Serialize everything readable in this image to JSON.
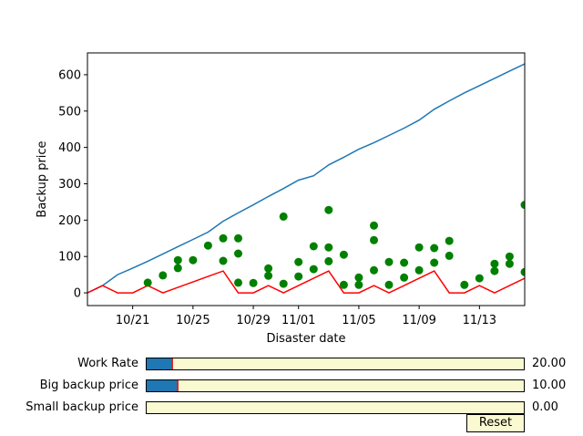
{
  "chart_data": {
    "type": "line",
    "xlabel": "Disaster date",
    "ylabel": "Backup price",
    "x_start": "2019-10-18",
    "x_end": "2019-11-16",
    "xticks": [
      {
        "date": "2019-10-21",
        "label": "10/21"
      },
      {
        "date": "2019-10-25",
        "label": "10/25"
      },
      {
        "date": "2019-10-29",
        "label": "10/29"
      },
      {
        "date": "2019-11-01",
        "label": "11/01"
      },
      {
        "date": "2019-11-05",
        "label": "11/05"
      },
      {
        "date": "2019-11-09",
        "label": "11/09"
      },
      {
        "date": "2019-11-13",
        "label": "11/13"
      }
    ],
    "ylim": [
      -35,
      660
    ],
    "yticks": [
      0,
      100,
      200,
      300,
      400,
      500,
      600
    ],
    "grid": false,
    "series": [
      {
        "color": "#1f77b4",
        "kind": "line",
        "points": [
          [
            "2019-10-18",
            0
          ],
          [
            "2019-10-19",
            20
          ],
          [
            "2019-10-20",
            50
          ],
          [
            "2019-10-21",
            68
          ],
          [
            "2019-10-22",
            87
          ],
          [
            "2019-10-23",
            107
          ],
          [
            "2019-10-24",
            127
          ],
          [
            "2019-10-25",
            147
          ],
          [
            "2019-10-26",
            167
          ],
          [
            "2019-10-27",
            197
          ],
          [
            "2019-10-28",
            220
          ],
          [
            "2019-10-29",
            242
          ],
          [
            "2019-10-30",
            265
          ],
          [
            "2019-10-31",
            287
          ],
          [
            "2019-11-01",
            310
          ],
          [
            "2019-11-02",
            322
          ],
          [
            "2019-11-03",
            352
          ],
          [
            "2019-11-04",
            373
          ],
          [
            "2019-11-05",
            395
          ],
          [
            "2019-11-06",
            413
          ],
          [
            "2019-11-07",
            433
          ],
          [
            "2019-11-08",
            453
          ],
          [
            "2019-11-09",
            475
          ],
          [
            "2019-11-10",
            505
          ],
          [
            "2019-11-11",
            528
          ],
          [
            "2019-11-12",
            550
          ],
          [
            "2019-11-13",
            570
          ],
          [
            "2019-11-14",
            590
          ],
          [
            "2019-11-15",
            610
          ],
          [
            "2019-11-16",
            630
          ]
        ]
      },
      {
        "color": "#ff0000",
        "kind": "line",
        "points": [
          [
            "2019-10-18",
            0
          ],
          [
            "2019-10-19",
            20
          ],
          [
            "2019-10-20",
            0
          ],
          [
            "2019-10-21",
            0
          ],
          [
            "2019-10-22",
            20
          ],
          [
            "2019-10-23",
            0
          ],
          [
            "2019-10-24",
            15
          ],
          [
            "2019-10-25",
            30
          ],
          [
            "2019-10-26",
            45
          ],
          [
            "2019-10-27",
            60
          ],
          [
            "2019-10-28",
            0
          ],
          [
            "2019-10-29",
            0
          ],
          [
            "2019-10-30",
            20
          ],
          [
            "2019-10-31",
            0
          ],
          [
            "2019-11-01",
            20
          ],
          [
            "2019-11-02",
            40
          ],
          [
            "2019-11-03",
            60
          ],
          [
            "2019-11-04",
            0
          ],
          [
            "2019-11-05",
            0
          ],
          [
            "2019-11-06",
            20
          ],
          [
            "2019-11-07",
            0
          ],
          [
            "2019-11-08",
            20
          ],
          [
            "2019-11-09",
            40
          ],
          [
            "2019-11-10",
            60
          ],
          [
            "2019-11-11",
            0
          ],
          [
            "2019-11-12",
            0
          ],
          [
            "2019-11-13",
            20
          ],
          [
            "2019-11-14",
            0
          ],
          [
            "2019-11-15",
            20
          ],
          [
            "2019-11-16",
            40
          ],
          [
            "2019-11-17",
            60
          ]
        ]
      },
      {
        "color": "#008000",
        "kind": "scatter",
        "points": [
          [
            "2019-10-22",
            28
          ],
          [
            "2019-10-23",
            48
          ],
          [
            "2019-10-24",
            68
          ],
          [
            "2019-10-24",
            90
          ],
          [
            "2019-10-25",
            90
          ],
          [
            "2019-10-26",
            130
          ],
          [
            "2019-10-27",
            88
          ],
          [
            "2019-10-27",
            150
          ],
          [
            "2019-10-28",
            28
          ],
          [
            "2019-10-28",
            108
          ],
          [
            "2019-10-28",
            150
          ],
          [
            "2019-10-29",
            27
          ],
          [
            "2019-10-30",
            47
          ],
          [
            "2019-10-30",
            67
          ],
          [
            "2019-10-31",
            25
          ],
          [
            "2019-10-31",
            210
          ],
          [
            "2019-11-01",
            45
          ],
          [
            "2019-11-01",
            85
          ],
          [
            "2019-11-02",
            65
          ],
          [
            "2019-11-02",
            128
          ],
          [
            "2019-11-03",
            87
          ],
          [
            "2019-11-03",
            125
          ],
          [
            "2019-11-03",
            228
          ],
          [
            "2019-11-04",
            22
          ],
          [
            "2019-11-04",
            105
          ],
          [
            "2019-11-05",
            22
          ],
          [
            "2019-11-05",
            42
          ],
          [
            "2019-11-06",
            62
          ],
          [
            "2019-11-06",
            145
          ],
          [
            "2019-11-06",
            185
          ],
          [
            "2019-11-07",
            22
          ],
          [
            "2019-11-07",
            85
          ],
          [
            "2019-11-08",
            42
          ],
          [
            "2019-11-08",
            83
          ],
          [
            "2019-11-09",
            62
          ],
          [
            "2019-11-09",
            125
          ],
          [
            "2019-11-10",
            83
          ],
          [
            "2019-11-10",
            123
          ],
          [
            "2019-11-11",
            102
          ],
          [
            "2019-11-11",
            143
          ],
          [
            "2019-11-12",
            22
          ],
          [
            "2019-11-13",
            40
          ],
          [
            "2019-11-14",
            60
          ],
          [
            "2019-11-14",
            80
          ],
          [
            "2019-11-15",
            80
          ],
          [
            "2019-11-15",
            100
          ],
          [
            "2019-11-16",
            57
          ],
          [
            "2019-11-16",
            242
          ]
        ]
      }
    ]
  },
  "sliders": [
    {
      "label": "Work Rate",
      "value": "20.00",
      "fraction": 0.067
    },
    {
      "label": "Big backup price",
      "value": "10.00",
      "fraction": 0.083
    },
    {
      "label": "Small backup price",
      "value": "0.00",
      "fraction": 0.0
    }
  ],
  "reset_label": "Reset"
}
